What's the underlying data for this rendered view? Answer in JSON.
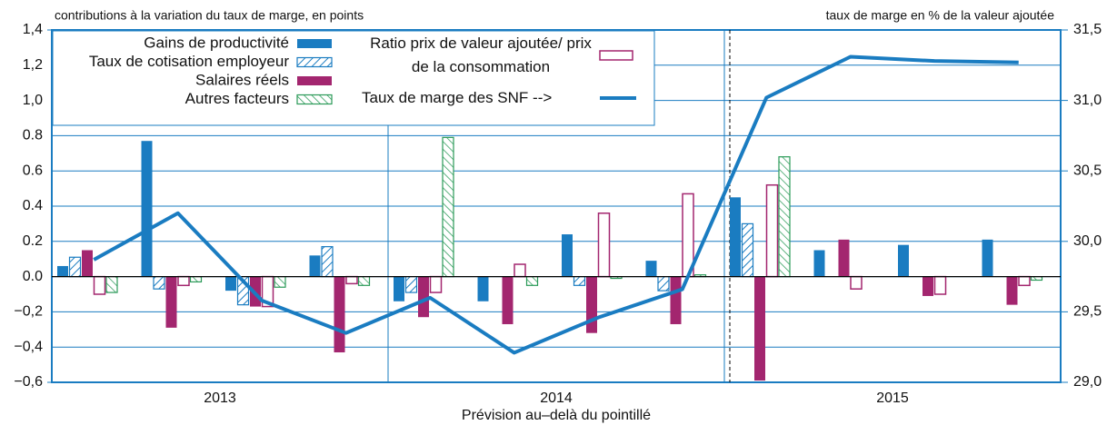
{
  "chart_data": {
    "type": "bar",
    "y_label": "contributions à la variation du taux de marge, en points",
    "y2_label": "taux de marge en % de la valeur ajoutée",
    "caption": "Prévision au–delà du pointillé",
    "categories": [
      null,
      null,
      null,
      null,
      null,
      null,
      null,
      null,
      null,
      null,
      null,
      null
    ],
    "groups": [
      "2013",
      "2014",
      "2015"
    ],
    "ylim": [
      -0.6,
      1.4
    ],
    "yticks": [
      {
        "value": -0.6,
        "label": "−0,6"
      },
      {
        "value": -0.4,
        "label": "−0,4"
      },
      {
        "value": -0.2,
        "label": "−0,2"
      },
      {
        "value": 0,
        "label": "0.0"
      },
      0.2,
      0.4,
      0.6,
      0.8,
      {
        "value": 1.0,
        "label": "1,0"
      },
      {
        "value": 1.2,
        "label": "1,2"
      },
      {
        "value": 1.4,
        "label": "1,4"
      }
    ],
    "y2lim": [
      29.0,
      31.5
    ],
    "y2ticks": [
      {
        "value": 29.0,
        "label": "29,0"
      },
      {
        "value": 29.5,
        "label": "29,5"
      },
      {
        "value": 30.0,
        "label": "30,0"
      },
      {
        "value": 30.5,
        "label": "30,5"
      },
      {
        "value": 31.0,
        "label": "31,0"
      },
      {
        "value": 31.5,
        "label": "31,5"
      }
    ],
    "grid": true,
    "series": [
      {
        "name": "Gains de productivité",
        "color": "#1a7cc1",
        "pattern": "solid",
        "values": [
          0.06,
          0.77,
          -0.08,
          0.12,
          -0.14,
          -0.14,
          0.24,
          0.09,
          0.45,
          0.15,
          0.18,
          0.21
        ]
      },
      {
        "name": "Taux de cotisation employeur",
        "color": "#1a7cc1",
        "pattern": "hatch",
        "values": [
          0.11,
          -0.07,
          -0.16,
          0.17,
          -0.09,
          0,
          -0.05,
          -0.08,
          0.3,
          0,
          0,
          0
        ]
      },
      {
        "name": "Salaires réels",
        "color": "#a3266f",
        "pattern": "solid",
        "values": [
          0.15,
          -0.29,
          -0.17,
          -0.43,
          -0.23,
          -0.27,
          -0.32,
          -0.27,
          -0.59,
          0.21,
          -0.11,
          -0.16
        ]
      },
      {
        "name": "Ratio prix de valeur ajoutée/ prix de la consommation",
        "color": "#a3266f",
        "pattern": "outline",
        "values": [
          -0.1,
          -0.05,
          -0.17,
          -0.04,
          -0.09,
          0.07,
          0.36,
          0.47,
          0.52,
          -0.07,
          -0.1,
          -0.05
        ]
      },
      {
        "name": "Autres facteurs",
        "color": "#2a9a58",
        "pattern": "hatch",
        "values": [
          -0.09,
          -0.03,
          -0.06,
          -0.05,
          0.79,
          -0.05,
          -0.01,
          0.01,
          0.68,
          0,
          0,
          -0.02
        ]
      },
      {
        "name": "Taux de marge des SNF -->",
        "color": "#1a7cc1",
        "type": "line",
        "axis": "y2",
        "values": [
          29.87,
          30.2,
          29.58,
          29.35,
          29.6,
          29.21,
          29.46,
          29.66,
          31.02,
          31.31,
          31.28,
          31.27
        ]
      }
    ]
  }
}
